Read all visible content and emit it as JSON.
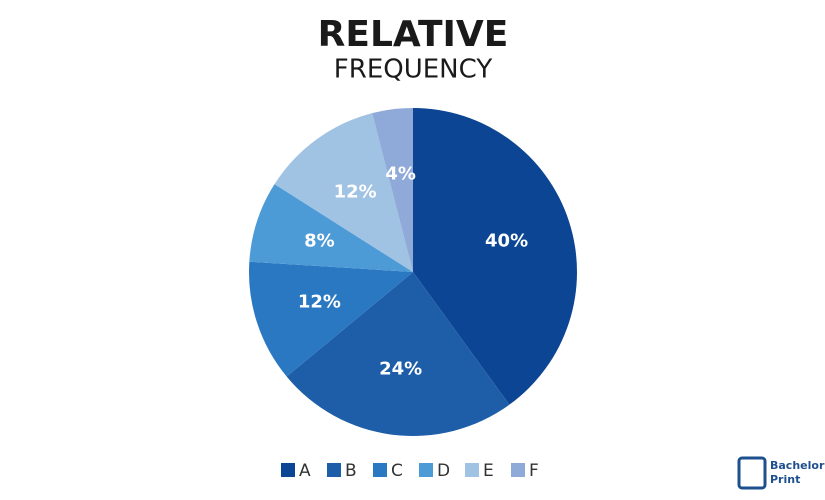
{
  "chart_data": {
    "type": "pie",
    "title": "RELATIVE",
    "subtitle": "FREQUENCY",
    "categories": [
      "A",
      "B",
      "C",
      "D",
      "E",
      "F"
    ],
    "values": [
      40,
      24,
      12,
      8,
      12,
      4
    ],
    "value_labels": [
      "40%",
      "24%",
      "12%",
      "8%",
      "12%",
      "4%"
    ],
    "colors": [
      "#0b4593",
      "#1e5ea8",
      "#2b78c2",
      "#4c9bd6",
      "#a0c2e3",
      "#8fa9d8"
    ],
    "legend": "bottom"
  },
  "logo": [
    "Bachelor",
    "Print"
  ]
}
